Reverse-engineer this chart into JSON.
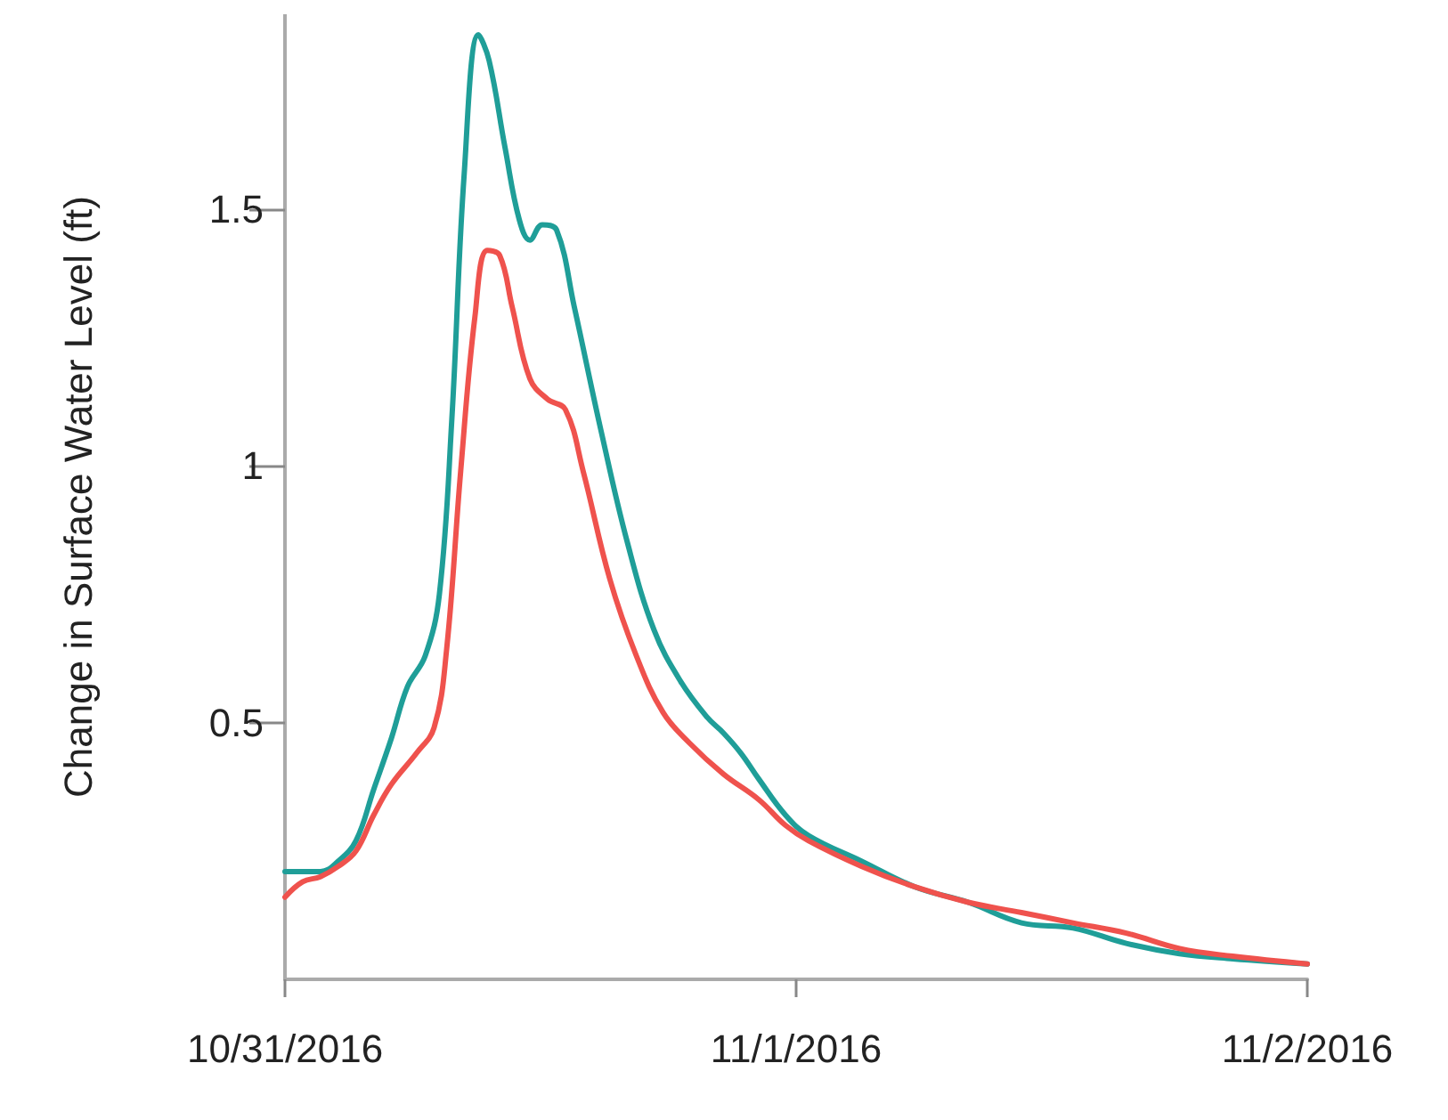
{
  "chart_data": {
    "type": "line",
    "ylabel": "Change in Surface Water Level (ft)",
    "xlim": [
      "2016-10-31T00:00",
      "2016-11-02T00:00"
    ],
    "ylim": [
      0,
      1.88
    ],
    "yticks": [
      0.5,
      1,
      1.5
    ],
    "xticks": [
      {
        "value": "2016-10-31T00:00",
        "label": "10/31/2016"
      },
      {
        "value": "2016-11-01T00:00",
        "label": "11/1/2016"
      },
      {
        "value": "2016-11-02T00:00",
        "label": "11/2/2016"
      }
    ],
    "grid": false,
    "marker": "none",
    "line_style": "solid",
    "series": [
      {
        "color": "#1f9e98",
        "x": [
          "2016-10-31T00:00",
          "2016-10-31T00:50",
          "2016-10-31T01:40",
          "2016-10-31T02:30",
          "2016-10-31T03:20",
          "2016-10-31T04:10",
          "2016-10-31T05:00",
          "2016-10-31T05:45",
          "2016-10-31T06:35",
          "2016-10-31T07:15",
          "2016-10-31T07:50",
          "2016-10-31T08:25",
          "2016-10-31T09:05",
          "2016-10-31T09:35",
          "2016-10-31T10:20",
          "2016-10-31T11:00",
          "2016-10-31T11:30",
          "2016-10-31T12:05",
          "2016-10-31T12:45",
          "2016-10-31T13:35",
          "2016-10-31T14:50",
          "2016-10-31T16:05",
          "2016-10-31T17:20",
          "2016-10-31T18:35",
          "2016-10-31T19:50",
          "2016-10-31T20:35",
          "2016-10-31T21:25",
          "2016-10-31T22:15",
          "2016-10-31T23:30",
          "2016-11-01T00:35",
          "2016-11-01T03:05",
          "2016-11-01T05:35",
          "2016-11-01T08:05",
          "2016-11-01T10:35",
          "2016-11-01T13:00",
          "2016-11-01T15:30",
          "2016-11-01T18:00",
          "2016-11-01T20:30",
          "2016-11-02T00:00"
        ],
        "values": [
          0.21,
          0.21,
          0.21,
          0.23,
          0.27,
          0.37,
          0.47,
          0.57,
          0.63,
          0.75,
          1.09,
          1.57,
          1.84,
          1.79,
          1.62,
          1.48,
          1.44,
          1.47,
          1.46,
          1.31,
          1.07,
          0.85,
          0.68,
          0.58,
          0.51,
          0.48,
          0.44,
          0.39,
          0.32,
          0.28,
          0.23,
          0.18,
          0.15,
          0.11,
          0.1,
          0.07,
          0.05,
          0.04,
          0.03
        ]
      },
      {
        "color": "#ef524d",
        "x": [
          "2016-10-31T00:00",
          "2016-10-31T00:50",
          "2016-10-31T01:40",
          "2016-10-31T02:30",
          "2016-10-31T03:20",
          "2016-10-31T04:10",
          "2016-10-31T05:00",
          "2016-10-31T06:10",
          "2016-10-31T07:00",
          "2016-10-31T07:35",
          "2016-10-31T08:15",
          "2016-10-31T08:55",
          "2016-10-31T09:30",
          "2016-10-31T10:05",
          "2016-10-31T10:40",
          "2016-10-31T11:30",
          "2016-10-31T12:20",
          "2016-10-31T13:10",
          "2016-10-31T14:00",
          "2016-10-31T15:15",
          "2016-10-31T16:30",
          "2016-10-31T17:45",
          "2016-10-31T19:00",
          "2016-10-31T20:35",
          "2016-10-31T22:15",
          "2016-10-31T23:30",
          "2016-11-01T00:35",
          "2016-11-01T03:05",
          "2016-11-01T05:35",
          "2016-11-01T08:05",
          "2016-11-01T10:35",
          "2016-11-01T13:00",
          "2016-11-01T15:30",
          "2016-11-01T18:00",
          "2016-11-01T20:30",
          "2016-11-02T00:00"
        ],
        "values": [
          0.16,
          0.19,
          0.2,
          0.22,
          0.25,
          0.32,
          0.38,
          0.44,
          0.49,
          0.64,
          0.99,
          1.29,
          1.42,
          1.41,
          1.31,
          1.17,
          1.13,
          1.11,
          0.99,
          0.78,
          0.63,
          0.52,
          0.46,
          0.4,
          0.35,
          0.3,
          0.27,
          0.22,
          0.18,
          0.15,
          0.13,
          0.11,
          0.09,
          0.06,
          0.045,
          0.03
        ]
      }
    ]
  }
}
